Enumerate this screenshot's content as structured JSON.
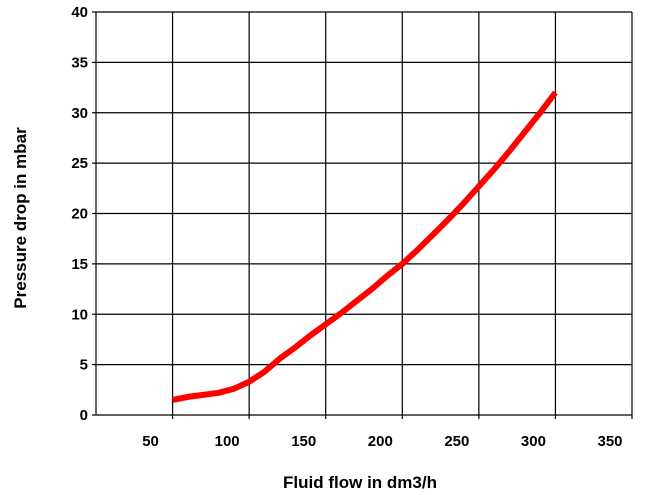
{
  "chart_data": {
    "type": "line",
    "title": "",
    "xlabel": "Fluid flow in dm3/h",
    "ylabel": "Pressure drop in mbar",
    "xlim": [
      0,
      350
    ],
    "ylim": [
      0,
      40
    ],
    "x_ticks": [
      50,
      100,
      150,
      200,
      250,
      300,
      350
    ],
    "y_ticks": [
      0,
      5,
      10,
      15,
      20,
      25,
      30,
      35,
      40
    ],
    "x_tick_labels": [
      "50",
      "100",
      "150",
      "200",
      "250",
      "300",
      "350"
    ],
    "y_tick_labels": [
      "0",
      "5",
      "10",
      "15",
      "20",
      "25",
      "30",
      "35",
      "40"
    ],
    "grid": true,
    "series": [
      {
        "color": "#ff0000",
        "x": [
          50,
          60,
          70,
          80,
          90,
          100,
          110,
          120,
          130,
          140,
          150,
          160,
          170,
          180,
          190,
          200,
          210,
          220,
          230,
          240,
          250,
          260,
          270,
          280,
          290,
          300
        ],
        "y": [
          1.5,
          1.8,
          2.0,
          2.2,
          2.6,
          3.3,
          4.3,
          5.6,
          6.7,
          7.9,
          9.0,
          10.1,
          11.3,
          12.5,
          13.8,
          15.0,
          16.4,
          17.9,
          19.4,
          21.0,
          22.7,
          24.4,
          26.2,
          28.1,
          30.0,
          32.0
        ]
      }
    ]
  }
}
